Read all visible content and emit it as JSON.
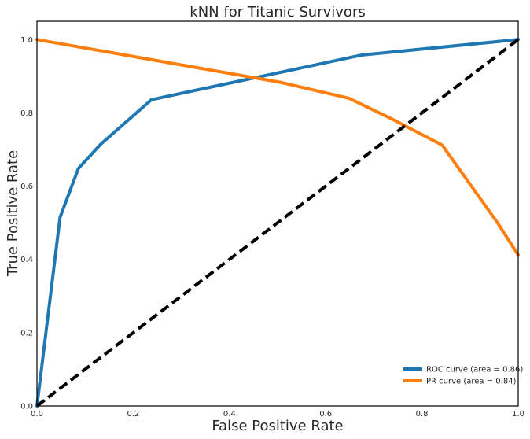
{
  "chart_data": {
    "type": "line",
    "title": "kNN for Titanic Survivors",
    "xlabel": "False Positive Rate",
    "ylabel": "True Positive Rate",
    "xlim": [
      0.0,
      1.0
    ],
    "ylim": [
      0.0,
      1.05
    ],
    "xticks": [
      "0.0",
      "0.2",
      "0.4",
      "0.6",
      "0.8",
      "1.0"
    ],
    "yticks": [
      "0.0",
      "0.2",
      "0.4",
      "0.6",
      "0.8",
      "1.0"
    ],
    "grid": false,
    "legend_position": "lower-right",
    "series": [
      {
        "name": "ROC curve (area = 0.86)",
        "color": "#1f77b4",
        "x": [
          0.0,
          0.048,
          0.086,
          0.133,
          0.238,
          0.676,
          1.0
        ],
        "y": [
          0.0,
          0.515,
          0.648,
          0.715,
          0.836,
          0.958,
          1.0
        ]
      },
      {
        "name": "PR curve (area = 0.84)",
        "color": "#ff7f0e",
        "x": [
          0.0,
          0.507,
          0.648,
          0.735,
          0.842,
          0.957,
          1.0
        ],
        "y": [
          1.0,
          0.883,
          0.84,
          0.785,
          0.712,
          0.5,
          0.412
        ]
      },
      {
        "name": "",
        "style": "dashed",
        "color": "#000000",
        "x": [
          0.0,
          1.0
        ],
        "y": [
          0.0,
          1.0
        ]
      }
    ]
  }
}
